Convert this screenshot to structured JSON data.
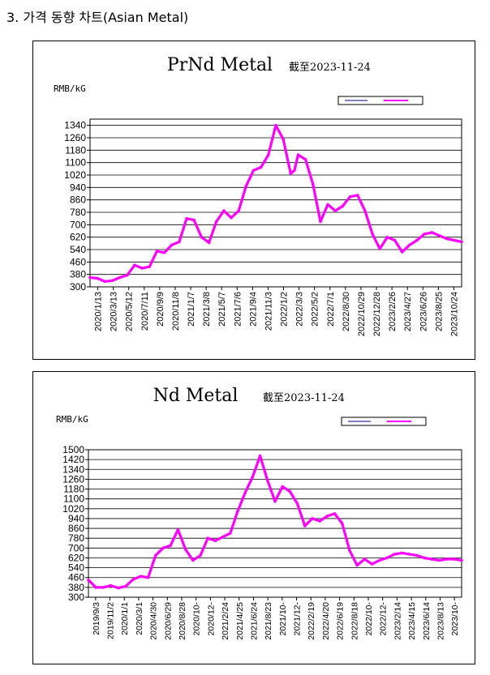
{
  "heading": "3. 가격 동향 차트(Asian Metal)",
  "colors": {
    "series": "#ff00ff",
    "legend_line1": "#000080",
    "grid": "#000000"
  },
  "chart_data": [
    {
      "type": "line",
      "title": "PrNd Metal",
      "subtitle": "截至2023-11-24",
      "ylabel": "RMB/kG",
      "legend": [
        "",
        ""
      ],
      "ylim": [
        300,
        1380
      ],
      "yticks": [
        300,
        380,
        460,
        540,
        620,
        700,
        780,
        860,
        940,
        1020,
        1100,
        1180,
        1260,
        1340
      ],
      "xticks": [
        "2020/1/13",
        "2020/3/13",
        "2020/5/12",
        "2020/7/11",
        "2020/9/9",
        "2020/11/8",
        "2021/1/7",
        "2021/3/8",
        "2021/5/7",
        "2021/7/6",
        "2021/9/4",
        "2021/11/3",
        "2022/1/2",
        "2022/3/3",
        "2022/5/2",
        "2022/7/1",
        "2022/8/30",
        "2022/10/29",
        "2022/12/28",
        "2023/2/26",
        "2023/4/27",
        "2023/6/26",
        "2023/8/25",
        "2023/10/24"
      ],
      "x": [
        0,
        0.02,
        0.04,
        0.06,
        0.08,
        0.1,
        0.12,
        0.14,
        0.16,
        0.18,
        0.2,
        0.22,
        0.24,
        0.26,
        0.28,
        0.3,
        0.32,
        0.34,
        0.36,
        0.38,
        0.4,
        0.42,
        0.44,
        0.46,
        0.48,
        0.5,
        0.52,
        0.54,
        0.55,
        0.56,
        0.58,
        0.6,
        0.62,
        0.64,
        0.66,
        0.68,
        0.7,
        0.72,
        0.74,
        0.76,
        0.78,
        0.8,
        0.82,
        0.84,
        0.86,
        0.88,
        0.9,
        0.92,
        0.94,
        0.96,
        0.98,
        1
      ],
      "values": [
        360,
        355,
        335,
        340,
        360,
        375,
        440,
        420,
        430,
        530,
        520,
        570,
        590,
        740,
        730,
        620,
        585,
        720,
        790,
        745,
        790,
        950,
        1050,
        1070,
        1150,
        1340,
        1250,
        1030,
        1050,
        1150,
        1120,
        960,
        720,
        830,
        790,
        820,
        880,
        890,
        790,
        640,
        545,
        620,
        600,
        525,
        570,
        600,
        640,
        650,
        630,
        610,
        600,
        590
      ]
    },
    {
      "type": "line",
      "title": "Nd Metal",
      "subtitle": "截至2023-11-24",
      "ylabel": "RMB/kG",
      "legend": [
        "",
        ""
      ],
      "ylim": [
        300,
        1500
      ],
      "yticks": [
        300,
        380,
        460,
        540,
        620,
        700,
        780,
        860,
        940,
        1020,
        1100,
        1180,
        1260,
        1340,
        1420,
        1500
      ],
      "xticks": [
        "2019/9/3",
        "2019/11/2",
        "2020/1/1",
        "2020/3/1",
        "2020/4/30",
        "2020/6/29",
        "2020/8/28",
        "2020/10-",
        "2020/12-",
        "2021/2/24",
        "2021/4/25",
        "2021/6/24",
        "2021/8/23",
        "2021/10-",
        "2021/12-",
        "2022/2/19",
        "2022/4/20",
        "2022/6/19",
        "2022/8/18",
        "2022/10-",
        "2022/12-",
        "2023/2/14",
        "2023/4/15",
        "2023/6/14",
        "2023/8/13",
        "2023/10-"
      ],
      "x": [
        0,
        0.02,
        0.04,
        0.06,
        0.08,
        0.1,
        0.12,
        0.14,
        0.16,
        0.18,
        0.2,
        0.22,
        0.24,
        0.26,
        0.28,
        0.3,
        0.32,
        0.34,
        0.36,
        0.38,
        0.4,
        0.42,
        0.44,
        0.46,
        0.48,
        0.5,
        0.52,
        0.54,
        0.56,
        0.58,
        0.6,
        0.62,
        0.64,
        0.66,
        0.68,
        0.7,
        0.72,
        0.74,
        0.76,
        0.78,
        0.8,
        0.82,
        0.84,
        0.86,
        0.88,
        0.9,
        0.92,
        0.94,
        0.96,
        0.98,
        1
      ],
      "values": [
        440,
        380,
        380,
        395,
        375,
        390,
        445,
        470,
        460,
        640,
        700,
        720,
        850,
        690,
        600,
        640,
        780,
        760,
        790,
        820,
        1000,
        1150,
        1280,
        1450,
        1250,
        1080,
        1200,
        1160,
        1060,
        880,
        940,
        920,
        960,
        980,
        900,
        680,
        560,
        610,
        570,
        600,
        620,
        650,
        660,
        650,
        640,
        620,
        610,
        600,
        610,
        610,
        600
      ]
    }
  ]
}
